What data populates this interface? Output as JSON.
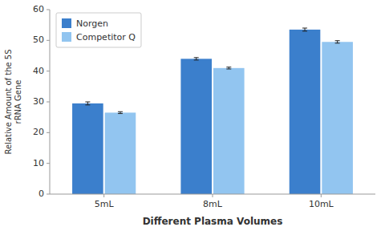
{
  "chart_data": {
    "type": "bar",
    "categories": [
      "5mL",
      "8mL",
      "10mL"
    ],
    "series": [
      {
        "name": "Norgen",
        "color": "#3B7FCC",
        "values": [
          29.5,
          44.0,
          53.5
        ],
        "errors": [
          0.5,
          0.4,
          0.5
        ]
      },
      {
        "name": "Competitor Q",
        "color": "#92C5F0",
        "values": [
          26.5,
          41.0,
          49.5
        ],
        "errors": [
          0.3,
          0.3,
          0.4
        ]
      }
    ],
    "xlabel": "Different Plasma Volumes",
    "ylabel": "Relative Amount of the 5S\nrRNA Gene",
    "ylim": [
      0,
      60
    ],
    "yticks": [
      0,
      10,
      20,
      30,
      40,
      50,
      60
    ],
    "legend": "upper left",
    "grid": false
  }
}
